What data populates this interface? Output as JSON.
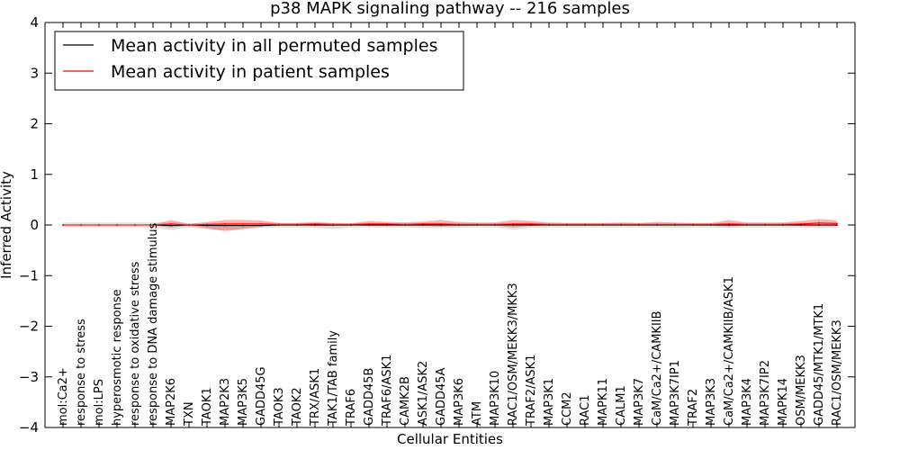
{
  "chart_data": {
    "type": "line",
    "title": "p38 MAPK signaling pathway -- 216 samples",
    "xlabel": "Cellular Entities",
    "ylabel": "Inferred Activity",
    "ylim": [
      -4,
      4
    ],
    "yticks": [
      4,
      3,
      2,
      1,
      0,
      -1,
      -2,
      -3,
      -4
    ],
    "ytick_labels": [
      "4",
      "3",
      "2",
      "1",
      "0",
      "−1",
      "−2",
      "−3",
      "−4"
    ],
    "grid": false,
    "legend_position": "top-left",
    "categories": [
      "mol:Ca2+",
      "response to stress",
      "mol:LPS",
      "hyperosmotic response",
      "response to oxidative stress",
      "response to DNA damage stimulus",
      "MAP2K6",
      "TXN",
      "TAOK1",
      "MAP2K3",
      "MAP3K5",
      "GADD45G",
      "TAOK3",
      "TAOK2",
      "TRX/ASK1",
      "TAK1/TAB family",
      "TRAF6",
      "GADD45B",
      "TRAF6/ASK1",
      "CAMK2B",
      "ASK1/ASK2",
      "GADD45A",
      "MAP3K6",
      "ATM",
      "MAP3K10",
      "RAC1/OSM/MEKK3/MKK3",
      "TRAF2/ASK1",
      "MAP3K1",
      "CCM2",
      "RAC1",
      "MAPK11",
      "CALM1",
      "MAP3K7",
      "CaM/Ca2+/CAMKIIB",
      "MAP3K7IP1",
      "TRAF2",
      "MAP3K3",
      "CaM/Ca2+/CAMKIIB/ASK1",
      "MAP3K4",
      "MAP3K7IP2",
      "MAPK14",
      "OSM/MEKK3",
      "GADD45/MTK1/MTK1",
      "RAC1/OSM/MEKK3"
    ],
    "series": [
      {
        "name": "Mean activity in all permuted samples",
        "color": "#000000",
        "values": [
          0,
          0,
          0,
          0,
          0,
          0,
          -0.01,
          0,
          -0.01,
          -0.01,
          -0.01,
          -0.01,
          0,
          0,
          0,
          0,
          0,
          0,
          0,
          0,
          0,
          0,
          0,
          0,
          0,
          0,
          0,
          0,
          0,
          0,
          0,
          0,
          0,
          0,
          0,
          0,
          0,
          0,
          0,
          0,
          0,
          0,
          0,
          0
        ],
        "band_upper": [
          0.05,
          0.05,
          0.05,
          0.05,
          0.05,
          0.05,
          0.05,
          0.04,
          0.04,
          0.04,
          0.04,
          0.04,
          0.04,
          0.04,
          0.04,
          0.04,
          0.04,
          0.04,
          0.04,
          0.04,
          0.04,
          0.04,
          0.04,
          0.04,
          0.04,
          0.04,
          0.04,
          0.04,
          0.04,
          0.04,
          0.04,
          0.04,
          0.04,
          0.04,
          0.04,
          0.04,
          0.04,
          0.04,
          0.04,
          0.04,
          0.04,
          0.04,
          0.04,
          0.04
        ],
        "band_lower": [
          -0.05,
          -0.05,
          -0.05,
          -0.05,
          -0.05,
          -0.05,
          -0.1,
          -0.05,
          -0.08,
          -0.1,
          -0.08,
          -0.06,
          -0.05,
          -0.05,
          -0.06,
          -0.08,
          -0.05,
          -0.05,
          -0.05,
          -0.05,
          -0.06,
          -0.06,
          -0.05,
          -0.05,
          -0.05,
          -0.09,
          -0.06,
          -0.05,
          -0.05,
          -0.05,
          -0.05,
          -0.05,
          -0.05,
          -0.05,
          -0.06,
          -0.05,
          -0.05,
          -0.06,
          -0.05,
          -0.05,
          -0.05,
          -0.05,
          -0.06,
          -0.06
        ]
      },
      {
        "name": "Mean activity in patient samples",
        "color": "#ff0000",
        "values": [
          0,
          0,
          0,
          0,
          0,
          0,
          0.02,
          0,
          0.01,
          0.02,
          0.02,
          0.02,
          0.01,
          0.01,
          0.02,
          0.01,
          0.01,
          0.02,
          0.02,
          0.01,
          0.02,
          0.02,
          0.01,
          0.01,
          0.01,
          0.02,
          0.02,
          0.01,
          0.01,
          0.01,
          0.01,
          0.01,
          0.01,
          0.01,
          0.01,
          0.01,
          0.01,
          0.02,
          0.01,
          0.01,
          0.01,
          0.02,
          0.04,
          0.03
        ],
        "band_upper": [
          0.01,
          0.01,
          0.01,
          0.01,
          0.01,
          0.01,
          0.1,
          0.02,
          0.06,
          0.1,
          0.1,
          0.09,
          0.04,
          0.04,
          0.06,
          0.04,
          0.03,
          0.08,
          0.06,
          0.05,
          0.07,
          0.1,
          0.06,
          0.05,
          0.05,
          0.1,
          0.08,
          0.05,
          0.04,
          0.04,
          0.04,
          0.05,
          0.04,
          0.06,
          0.05,
          0.04,
          0.04,
          0.1,
          0.05,
          0.05,
          0.05,
          0.08,
          0.12,
          0.09
        ],
        "band_lower": [
          -0.01,
          -0.01,
          -0.01,
          -0.01,
          -0.01,
          -0.01,
          -0.05,
          -0.01,
          -0.07,
          -0.12,
          -0.08,
          -0.03,
          -0.01,
          -0.01,
          -0.02,
          -0.02,
          -0.01,
          -0.02,
          -0.02,
          -0.02,
          -0.02,
          -0.03,
          -0.02,
          -0.01,
          -0.01,
          -0.05,
          -0.02,
          -0.01,
          -0.01,
          -0.01,
          -0.01,
          -0.01,
          -0.01,
          -0.01,
          -0.01,
          -0.01,
          -0.01,
          -0.03,
          -0.01,
          -0.01,
          -0.01,
          -0.02,
          -0.02,
          -0.02
        ]
      }
    ]
  }
}
